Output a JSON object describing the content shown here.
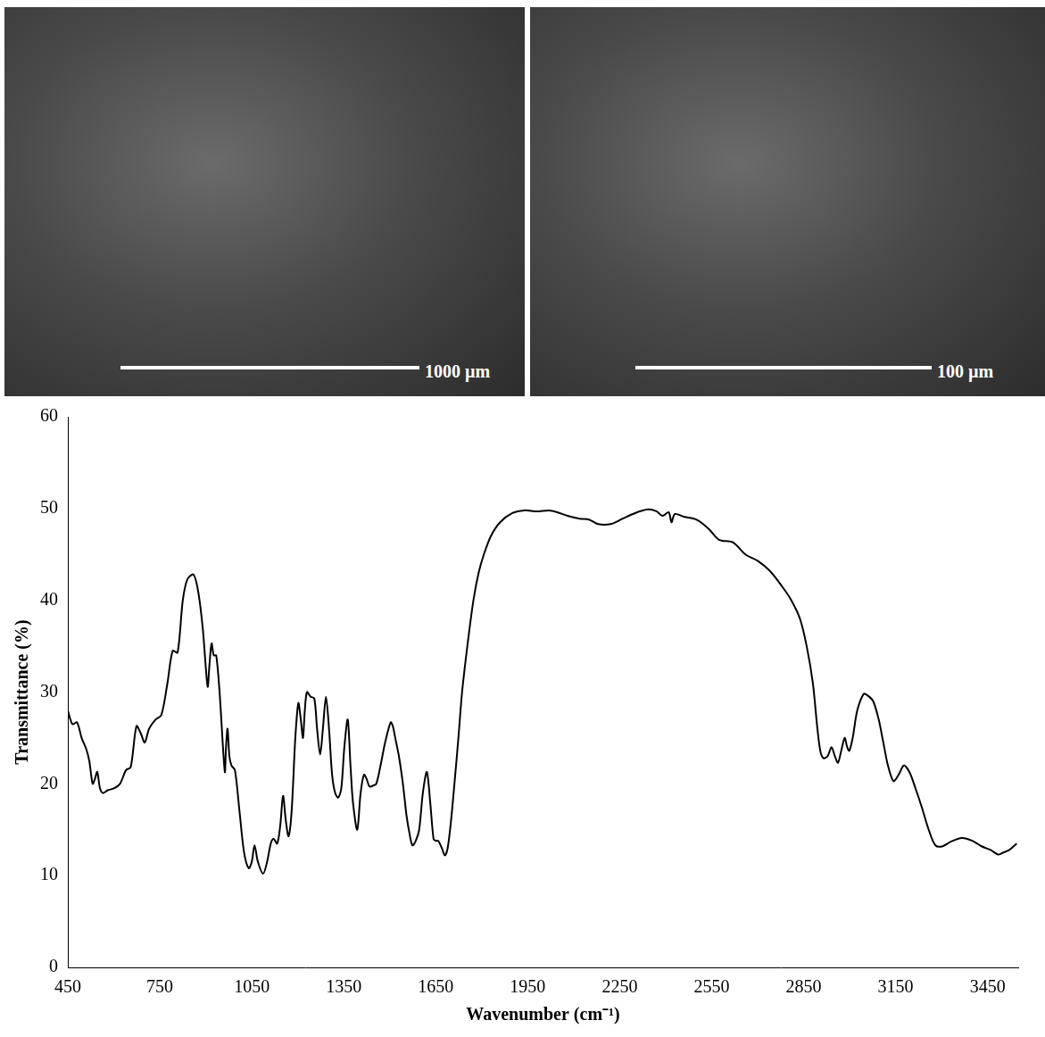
{
  "images": [
    {
      "scale_bar": "1000 µm"
    },
    {
      "scale_bar": "100 µm"
    }
  ],
  "chart_data": {
    "type": "line",
    "x_label": "Wavenumber (cm⁻¹)",
    "y_label": "Transmittance (%)",
    "xlim": [
      450,
      3550
    ],
    "xticks": [
      450,
      750,
      1050,
      1350,
      1650,
      1950,
      2250,
      2550,
      2850,
      3150,
      3450
    ],
    "ylim": [
      0,
      60
    ],
    "yticks": [
      0,
      10,
      20,
      30,
      40,
      50,
      60
    ],
    "grid": false,
    "color": "#000000",
    "x": [
      450,
      465,
      480,
      495,
      510,
      520,
      531,
      538,
      546,
      555,
      565,
      580,
      600,
      620,
      640,
      655,
      674,
      688,
      701,
      715,
      736,
      755,
      775,
      792,
      808,
      825,
      840,
      860,
      875,
      890,
      906,
      912,
      919,
      926,
      934,
      945,
      962,
      966,
      971,
      977,
      984,
      995,
      1010,
      1025,
      1040,
      1050,
      1059,
      1070,
      1087,
      1100,
      1112,
      1121,
      1133,
      1143,
      1152,
      1161,
      1170,
      1180,
      1192,
      1202,
      1210,
      1217,
      1223,
      1230,
      1242,
      1254,
      1263,
      1273,
      1282,
      1292,
      1302,
      1312,
      1322,
      1332,
      1342,
      1352,
      1363,
      1372,
      1380,
      1394,
      1405,
      1416,
      1425,
      1434,
      1445,
      1456,
      1470,
      1485,
      1503,
      1510,
      1518,
      1530,
      1543,
      1555,
      1565,
      1574,
      1585,
      1596,
      1608,
      1621,
      1632,
      1643,
      1650,
      1658,
      1670,
      1680,
      1689,
      1700,
      1711,
      1724,
      1736,
      1755,
      1773,
      1790,
      1807,
      1830,
      1860,
      1900,
      1938,
      1980,
      2020,
      2046,
      2080,
      2120,
      2150,
      2180,
      2220,
      2260,
      2300,
      2342,
      2370,
      2390,
      2410,
      2419,
      2430,
      2460,
      2500,
      2540,
      2574,
      2620,
      2660,
      2700,
      2740,
      2780,
      2810,
      2838,
      2860,
      2880,
      2895,
      2905,
      2915,
      2928,
      2941,
      2952,
      2962,
      2972,
      2984,
      2992,
      2999,
      3010,
      3025,
      3046,
      3060,
      3077,
      3095,
      3110,
      3125,
      3143,
      3160,
      3177,
      3195,
      3215,
      3235,
      3258,
      3280,
      3304,
      3330,
      3366,
      3400,
      3430,
      3460,
      3484,
      3500,
      3521,
      3545
    ],
    "values": [
      28,
      26.5,
      26.7,
      25,
      23.8,
      22.5,
      20,
      20.5,
      21.3,
      19.5,
      19,
      19.3,
      19.5,
      20,
      21.5,
      21.8,
      26.3,
      25.5,
      24.5,
      26,
      27,
      27.5,
      31,
      34.5,
      34.3,
      40,
      42.3,
      42.8,
      41,
      37,
      30.6,
      33,
      35.3,
      34,
      34,
      30,
      21.3,
      24,
      26,
      23,
      22,
      21.5,
      17,
      12.5,
      10.8,
      11.5,
      13.3,
      11.5,
      10.2,
      11.5,
      13.5,
      14,
      13.5,
      15.5,
      18.7,
      16,
      14.3,
      17,
      25,
      28.8,
      27,
      25,
      28,
      30,
      29.5,
      29.3,
      26,
      23.2,
      26,
      29.5,
      26,
      21,
      19,
      18.5,
      19.5,
      24,
      27,
      22,
      18,
      15,
      19,
      21,
      20.5,
      19.7,
      19.8,
      20,
      22,
      24.5,
      26.7,
      26.3,
      25,
      23,
      20,
      16.5,
      14.5,
      13.3,
      13.8,
      15,
      19,
      21.3,
      18,
      14,
      13.8,
      13.8,
      13,
      12.2,
      13,
      16,
      20,
      25,
      30,
      35.5,
      40,
      43,
      45,
      47,
      48.5,
      49.5,
      49.8,
      49.7,
      49.8,
      49.6,
      49.2,
      48.9,
      48.8,
      48.3,
      48.3,
      48.9,
      49.5,
      49.9,
      49.7,
      49.2,
      49.6,
      48.5,
      49.4,
      49.1,
      48.8,
      47.8,
      46.6,
      46.3,
      45,
      44.3,
      43.2,
      41.5,
      40,
      38,
      35,
      31,
      26,
      23.5,
      22.8,
      23,
      24,
      23,
      22.3,
      23.5,
      25,
      24,
      23.6,
      25,
      28,
      29.8,
      29.6,
      29,
      27,
      24.5,
      22,
      20.3,
      21,
      22,
      21.3,
      19.5,
      17.5,
      15,
      13.3,
      13.2,
      13.7,
      14.1,
      13.8,
      13.2,
      12.8,
      12.3,
      12.5,
      12.8,
      13.5
    ]
  }
}
